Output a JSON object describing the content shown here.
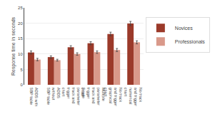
{
  "chart_data": {
    "type": "bar",
    "categories": [
      "ADDS with\nSBP table",
      "ADDS\nwithout\nSBP table",
      "Single\nparameter\ntrack and\ntrigger\nchart",
      "Multiple\nparameter\ntrack and\ntrigger\nchart",
      "No track\nand trigger\ngraphical\nchart",
      "No track\nand trigger\nnumerical\nchart"
    ],
    "series": [
      {
        "name": "Novices",
        "color": "#9B3A2A",
        "values": [
          10.5,
          9.0,
          12.2,
          13.5,
          16.5,
          19.9
        ],
        "errors": [
          0.5,
          0.4,
          0.5,
          0.5,
          0.6,
          0.7
        ]
      },
      {
        "name": "Professionals",
        "color": "#D9998A",
        "values": [
          8.2,
          8.0,
          10.0,
          10.6,
          11.3,
          13.8
        ],
        "errors": [
          0.4,
          0.3,
          0.4,
          0.4,
          0.5,
          0.5
        ]
      }
    ],
    "ylabel": "Response time in seconds",
    "ylim": [
      0,
      25
    ],
    "yticks": [
      0,
      5,
      10,
      15,
      20,
      25
    ],
    "grid": true,
    "legend": "right"
  }
}
